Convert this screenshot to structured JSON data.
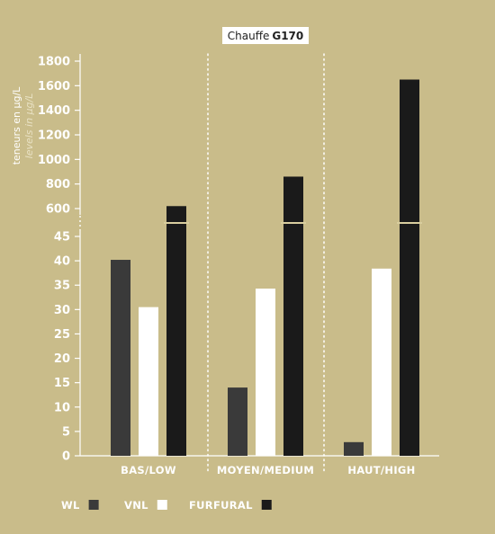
{
  "chart_data": {
    "type": "bar",
    "title_prefix": "Chauffe",
    "title_bold": "G170",
    "ylabel_fr": "teneurs en µg/L",
    "ylabel_en": "levels in µg/L",
    "categories": [
      "BAS/LOW",
      "MOYEN/MEDIUM",
      "HAUT/HIGH"
    ],
    "series": [
      {
        "name": "WL",
        "color": "#3a3a3a",
        "values": [
          40.2,
          14.0,
          2.8
        ]
      },
      {
        "name": "VNL",
        "color": "#ffffff",
        "values": [
          30.5,
          34.3,
          38.4
        ]
      },
      {
        "name": "FURFURAL",
        "color": "#1a1a1a",
        "values": [
          620,
          860,
          1650
        ]
      }
    ],
    "axis_lower": {
      "ticks": [
        0,
        5,
        10,
        15,
        20,
        25,
        30,
        35,
        40,
        45
      ],
      "range": [
        0,
        45
      ]
    },
    "axis_upper": {
      "ticks": [
        600,
        800,
        1000,
        1200,
        1400,
        1600,
        1800
      ],
      "range": [
        600,
        1800
      ]
    },
    "broken_axis": true,
    "grid": false,
    "legend_position": "bottom-left"
  }
}
